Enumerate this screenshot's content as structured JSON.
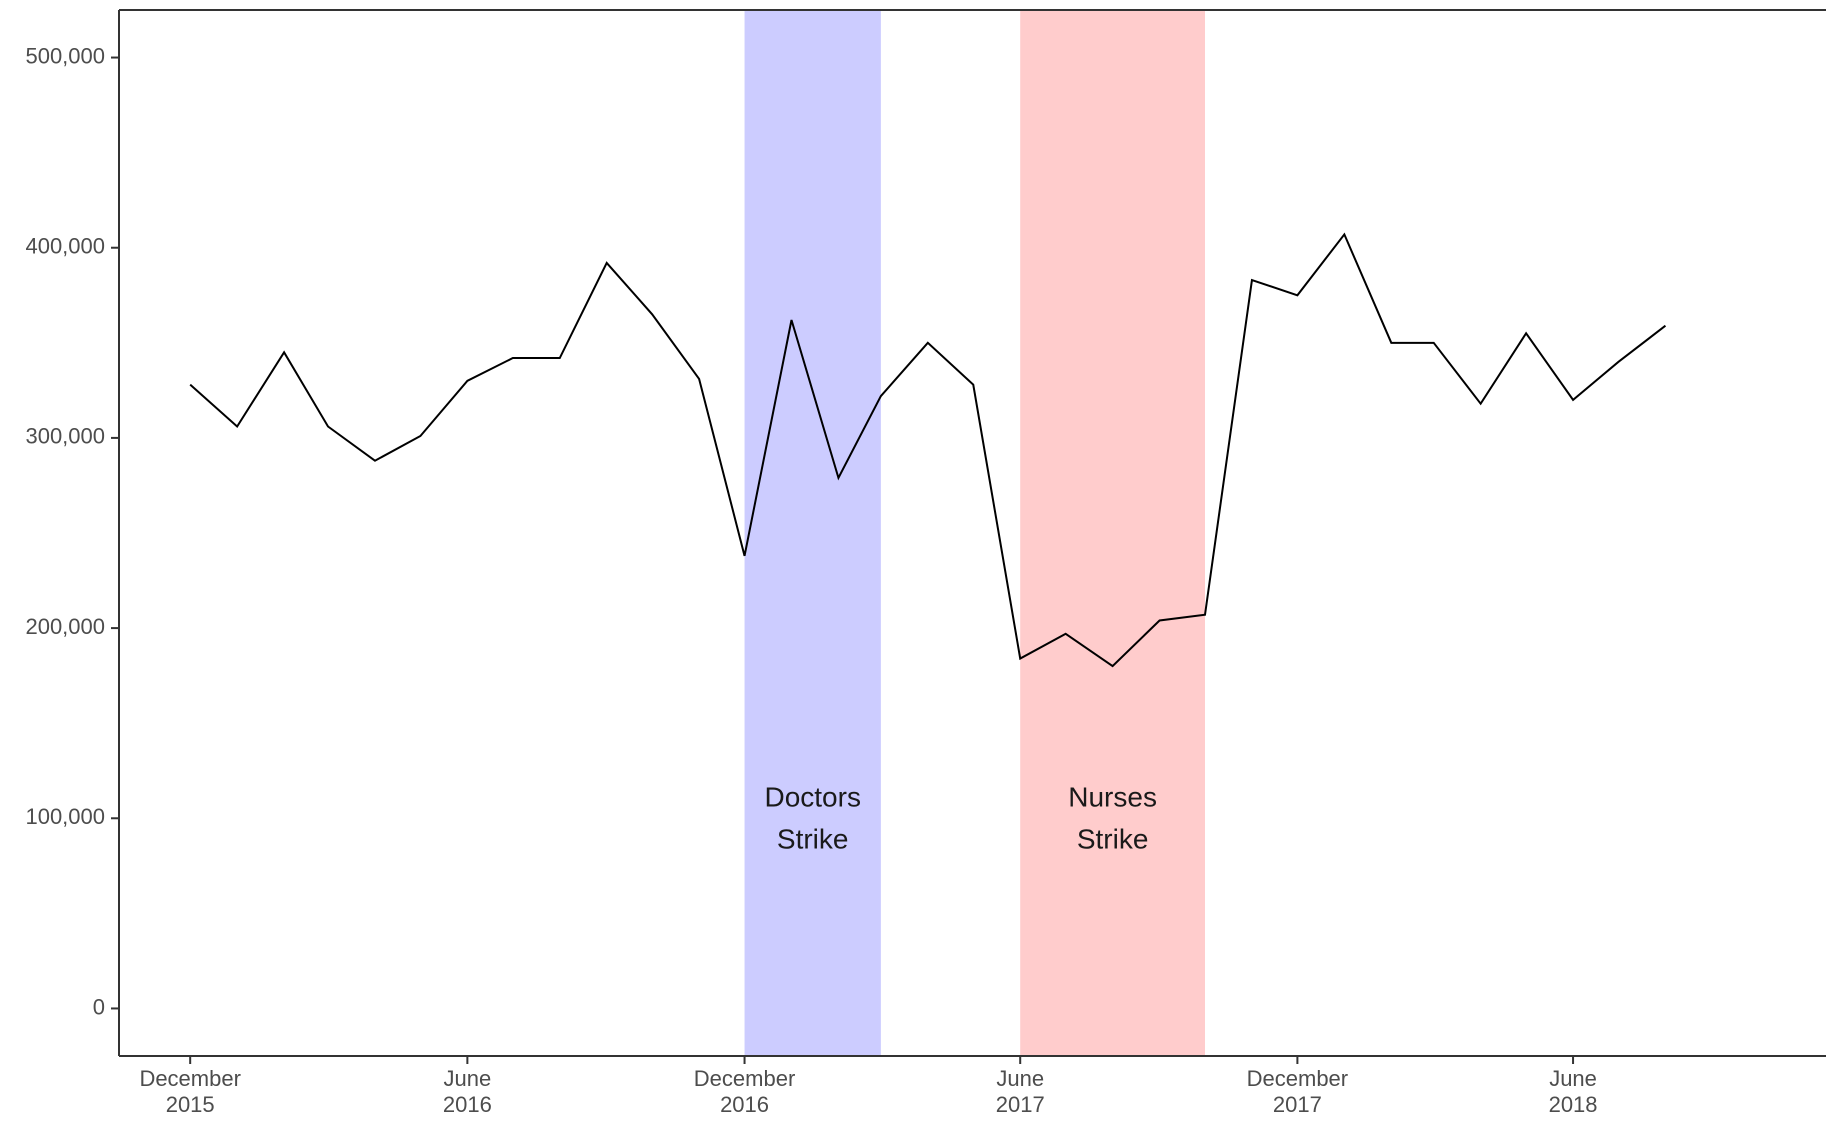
{
  "chart_data": {
    "type": "line",
    "title": "",
    "xlabel": "",
    "ylabel": "",
    "ylim": [
      -25000,
      525000
    ],
    "xlim": [
      "2015-10-15",
      "2018-11-15"
    ],
    "grid": false,
    "legend": "none",
    "x_ticks": [
      {
        "date": "2015-12-01",
        "month": "December",
        "year": "2015"
      },
      {
        "date": "2016-06-01",
        "month": "June",
        "year": "2016"
      },
      {
        "date": "2016-12-01",
        "month": "December",
        "year": "2016"
      },
      {
        "date": "2017-06-01",
        "month": "June",
        "year": "2017"
      },
      {
        "date": "2017-12-01",
        "month": "December",
        "year": "2017"
      },
      {
        "date": "2018-06-01",
        "month": "June",
        "year": "2018"
      }
    ],
    "y_ticks": [
      {
        "value": 0,
        "label": "0"
      },
      {
        "value": 100000,
        "label": "100,000"
      },
      {
        "value": 200000,
        "label": "200,000"
      },
      {
        "value": 300000,
        "label": "300,000"
      },
      {
        "value": 400000,
        "label": "400,000"
      },
      {
        "value": 500000,
        "label": "500,000"
      }
    ],
    "series": [
      {
        "color": "#000000",
        "points": [
          {
            "x": "2015-12-01",
            "y": 328000
          },
          {
            "x": "2016-01-01",
            "y": 306000
          },
          {
            "x": "2016-02-01",
            "y": 345000
          },
          {
            "x": "2016-03-01",
            "y": 306000
          },
          {
            "x": "2016-04-01",
            "y": 288000
          },
          {
            "x": "2016-05-01",
            "y": 301000
          },
          {
            "x": "2016-06-01",
            "y": 330000
          },
          {
            "x": "2016-07-01",
            "y": 342000
          },
          {
            "x": "2016-08-01",
            "y": 342000
          },
          {
            "x": "2016-09-01",
            "y": 392000
          },
          {
            "x": "2016-10-01",
            "y": 365000
          },
          {
            "x": "2016-11-01",
            "y": 331000
          },
          {
            "x": "2016-12-01",
            "y": 238000
          },
          {
            "x": "2017-01-01",
            "y": 362000
          },
          {
            "x": "2017-02-01",
            "y": 279000
          },
          {
            "x": "2017-03-01",
            "y": 322000
          },
          {
            "x": "2017-04-01",
            "y": 350000
          },
          {
            "x": "2017-05-01",
            "y": 328000
          },
          {
            "x": "2017-06-01",
            "y": 184000
          },
          {
            "x": "2017-07-01",
            "y": 197000
          },
          {
            "x": "2017-08-01",
            "y": 180000
          },
          {
            "x": "2017-09-01",
            "y": 204000
          },
          {
            "x": "2017-10-01",
            "y": 207000
          },
          {
            "x": "2017-11-01",
            "y": 383000
          },
          {
            "x": "2017-12-01",
            "y": 375000
          },
          {
            "x": "2018-01-01",
            "y": 407000
          },
          {
            "x": "2018-02-01",
            "y": 350000
          },
          {
            "x": "2018-03-01",
            "y": 350000
          },
          {
            "x": "2018-04-01",
            "y": 318000
          },
          {
            "x": "2018-05-01",
            "y": 355000
          },
          {
            "x": "2018-06-01",
            "y": 320000
          },
          {
            "x": "2018-07-01",
            "y": 340000
          },
          {
            "x": "2018-08-01",
            "y": 359000
          }
        ]
      }
    ],
    "annotations": [
      {
        "label_line1": "Doctors",
        "label_line2": "Strike",
        "start": "2016-12-01",
        "end": "2017-03-01",
        "color": "#ccccff",
        "label_y1": 110000,
        "label_y2": 88000
      },
      {
        "label_line1": "Nurses",
        "label_line2": "Strike",
        "start": "2017-06-01",
        "end": "2017-10-01",
        "color": "#ffcccc",
        "label_y1": 110000,
        "label_y2": 88000
      }
    ]
  }
}
